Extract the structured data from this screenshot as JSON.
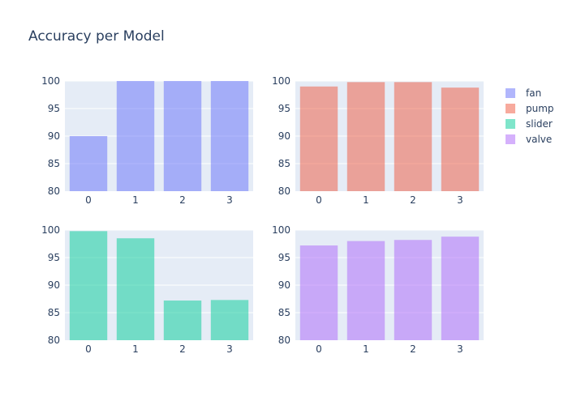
{
  "title": "Accuracy per Model",
  "chart_data": {
    "type": "bar",
    "title": "Accuracy per Model",
    "legend_position": "right",
    "grid": true,
    "y_ticks": [
      80,
      85,
      90,
      95,
      100
    ],
    "subplots": [
      {
        "name": "fan",
        "color": "#636efa",
        "categories": [
          "0",
          "1",
          "2",
          "3"
        ],
        "values": [
          90.0,
          100.0,
          100.0,
          100.0
        ],
        "ylim": [
          80,
          100
        ]
      },
      {
        "name": "pump",
        "color": "#ef553b",
        "categories": [
          "0",
          "1",
          "2",
          "3"
        ],
        "values": [
          99.0,
          99.8,
          99.8,
          98.8
        ],
        "ylim": [
          80,
          100
        ]
      },
      {
        "name": "slider",
        "color": "#00cc96",
        "categories": [
          "0",
          "1",
          "2",
          "3"
        ],
        "values": [
          99.8,
          98.5,
          87.2,
          87.3
        ],
        "ylim": [
          80,
          100
        ]
      },
      {
        "name": "valve",
        "color": "#ab63fa",
        "categories": [
          "0",
          "1",
          "2",
          "3"
        ],
        "values": [
          97.2,
          98.0,
          98.2,
          98.8
        ],
        "ylim": [
          80,
          100
        ]
      }
    ]
  }
}
